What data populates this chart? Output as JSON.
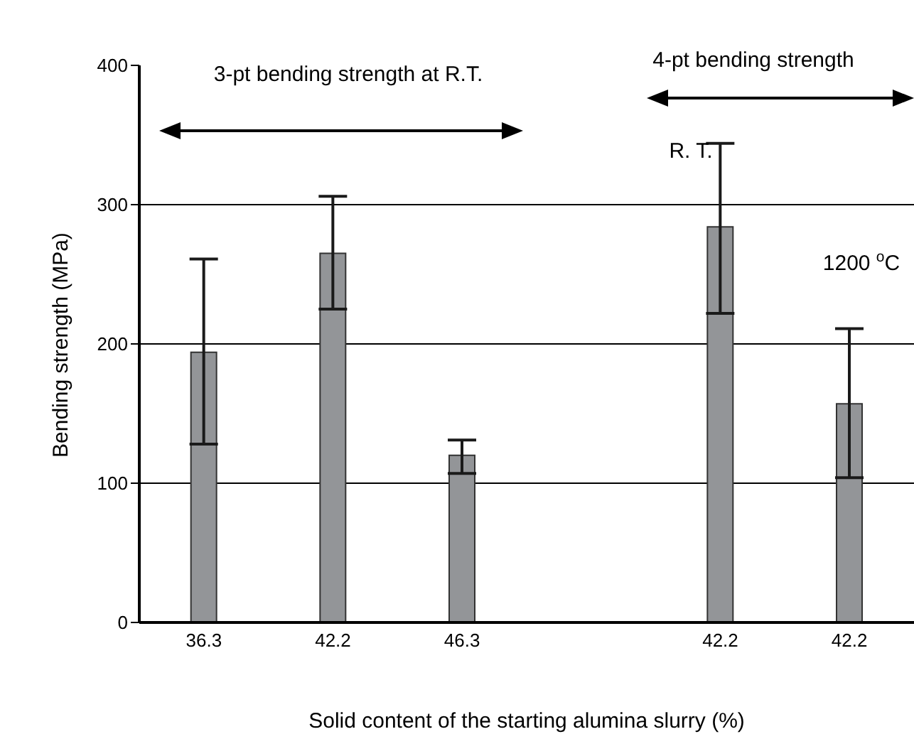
{
  "chart_data": {
    "type": "bar",
    "xlabel": "Solid content of the starting alumina slurry (%)",
    "ylabel": "Bending strength (MPa)",
    "categories": [
      "36.3",
      "42.2",
      "46.3",
      null,
      "42.2",
      "42.2"
    ],
    "values": [
      194,
      265,
      120,
      null,
      284,
      157
    ],
    "errors": [
      [
        128,
        261
      ],
      [
        225,
        306
      ],
      [
        107,
        131
      ],
      null,
      [
        222,
        344
      ],
      [
        104,
        211
      ]
    ],
    "color": "#939598",
    "ylim": [
      0,
      400
    ],
    "yticks": [
      0,
      100,
      200,
      300,
      400
    ],
    "grid": "y",
    "annotations": [
      "3-pt bending strength at R.T.",
      "4-pt bending strength",
      "R. T.",
      "1200 $^{o}$C"
    ]
  }
}
